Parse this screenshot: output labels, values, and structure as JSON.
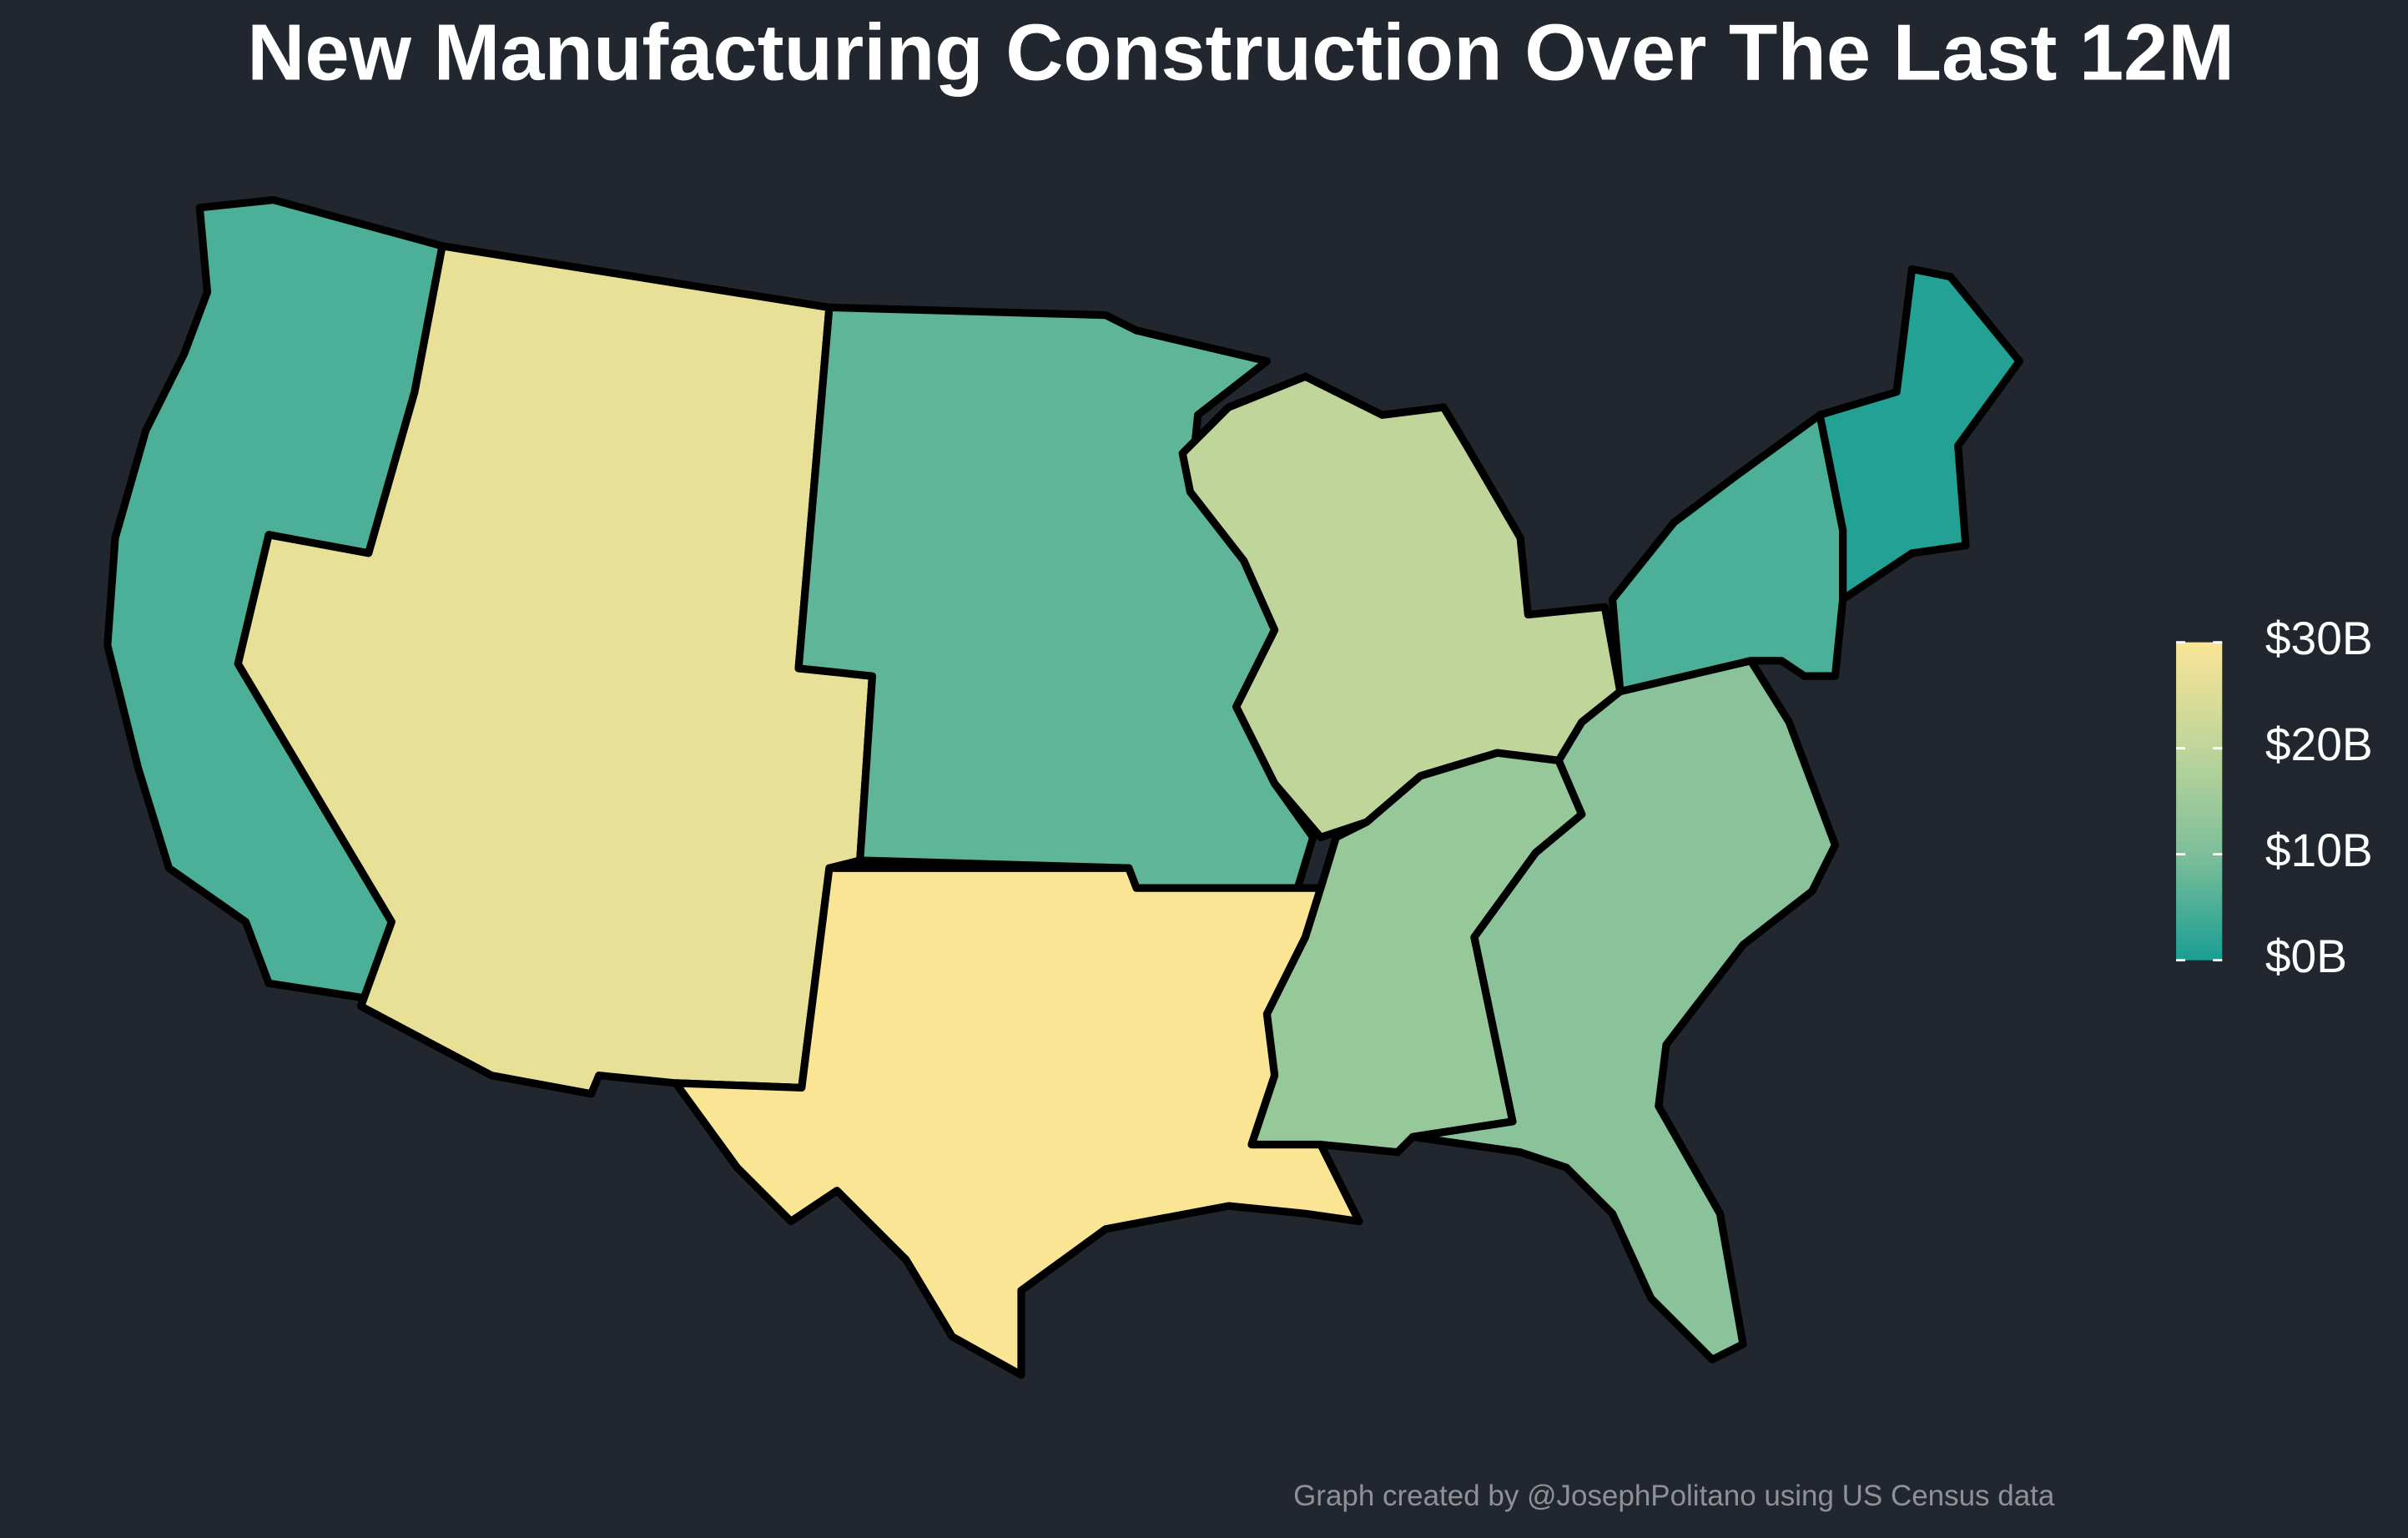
{
  "chart_data": {
    "type": "choropleth",
    "title": "New Manufacturing Construction Over The Last 12M",
    "caption": "Graph created by @JosephPolitano using US Census data",
    "values": [
      5,
      27,
      7,
      30,
      20,
      14,
      12,
      5,
      1
    ],
    "lim": [
      0,
      30
    ],
    "ticks": [
      {
        "value": 0,
        "label": "$0B"
      },
      {
        "value": 10,
        "label": "$10B"
      },
      {
        "value": 20,
        "label": "$20B"
      },
      {
        "value": 30,
        "label": "$30B"
      }
    ],
    "colors": [
      "#1a9e94",
      "#7dbf9a",
      "#bfd59a",
      "#fae595"
    ]
  }
}
